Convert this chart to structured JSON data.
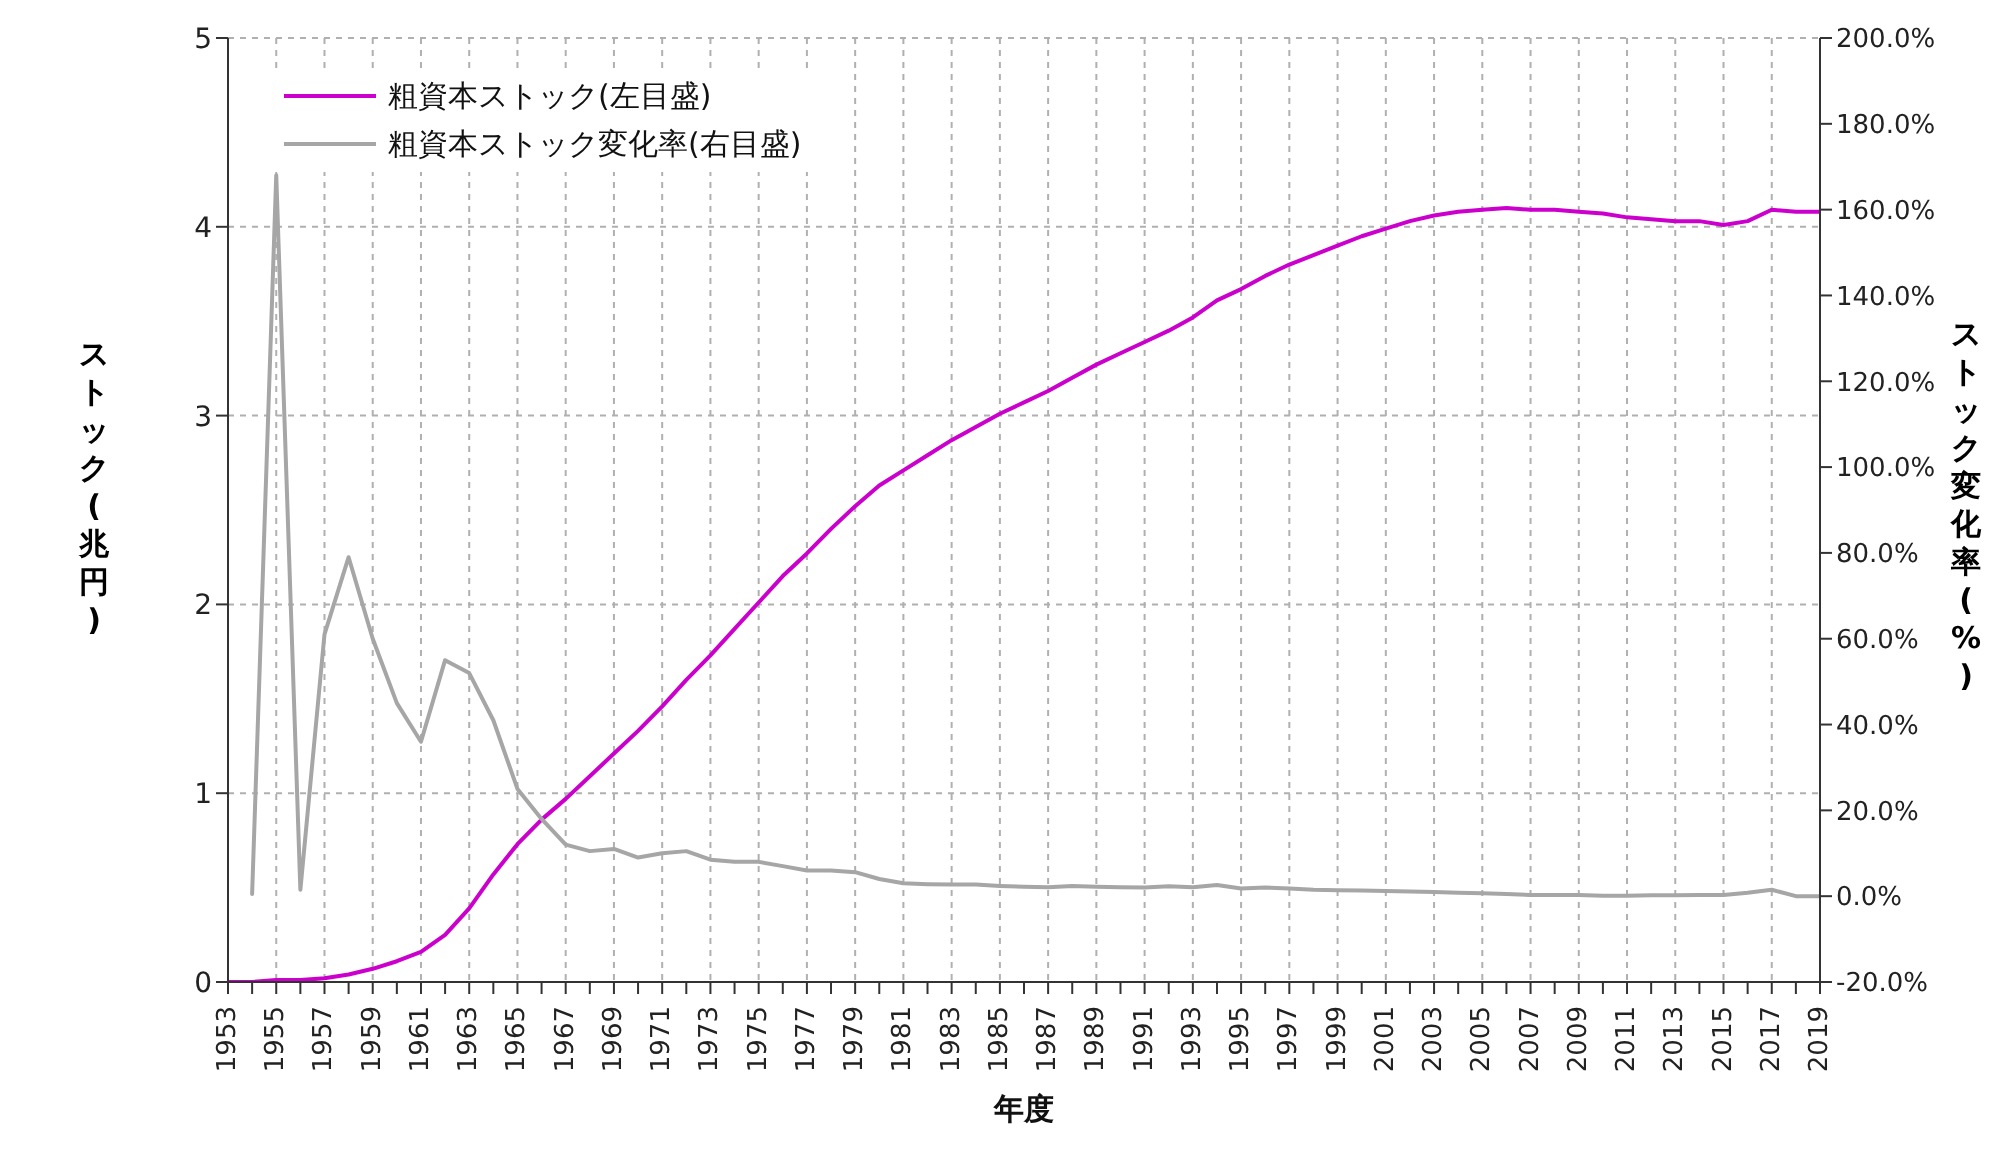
{
  "chart_data": {
    "type": "line",
    "xlabel": "年度",
    "ylabel": "ストック(兆円)",
    "y2label": "ストック変化率(%)",
    "x": [
      1953,
      1954,
      1955,
      1956,
      1957,
      1958,
      1959,
      1960,
      1961,
      1962,
      1963,
      1964,
      1965,
      1966,
      1967,
      1968,
      1969,
      1970,
      1971,
      1972,
      1973,
      1974,
      1975,
      1976,
      1977,
      1978,
      1979,
      1980,
      1981,
      1982,
      1983,
      1984,
      1985,
      1986,
      1987,
      1988,
      1989,
      1990,
      1991,
      1992,
      1993,
      1994,
      1995,
      1996,
      1997,
      1998,
      1999,
      2000,
      2001,
      2002,
      2003,
      2004,
      2005,
      2006,
      2007,
      2008,
      2009,
      2010,
      2011,
      2012,
      2013,
      2014,
      2015,
      2016,
      2017,
      2018,
      2019
    ],
    "series": [
      {
        "name": "粗資本ストック(左目盛)",
        "color": "#cc00cc",
        "values": [
          0,
          0,
          0.01,
          0.01,
          0.02,
          0.04,
          0.07,
          0.11,
          0.16,
          0.25,
          0.39,
          0.57,
          0.73,
          0.86,
          0.97,
          1.09,
          1.21,
          1.33,
          1.46,
          1.6,
          1.73,
          1.87,
          2.01,
          2.15,
          2.27,
          2.4,
          2.52,
          2.63,
          2.71,
          2.79,
          2.87,
          2.94,
          3.01,
          3.07,
          3.13,
          3.2,
          3.27,
          3.33,
          3.39,
          3.45,
          3.52,
          3.61,
          3.67,
          3.74,
          3.8,
          3.85,
          3.9,
          3.95,
          3.99,
          4.03,
          4.06,
          4.08,
          4.09,
          4.1,
          4.09,
          4.09,
          4.08,
          4.07,
          4.05,
          4.04,
          4.03,
          4.03,
          4.01,
          4.03,
          4.09,
          4.08,
          4.08
        ]
      },
      {
        "name": "粗資本ストック変化率(右目盛)",
        "color": "#a6a6a6",
        "axis": "y2",
        "values": [
          null,
          0.5,
          168,
          1.5,
          61,
          79,
          60,
          45,
          36,
          55,
          52,
          41,
          25,
          18,
          12,
          10.5,
          11,
          9,
          10,
          10.5,
          8.5,
          8,
          8,
          7,
          6,
          6,
          5.6,
          4,
          3,
          2.8,
          2.7,
          2.7,
          2.4,
          2.2,
          2.1,
          2.4,
          2.2,
          2.1,
          2,
          2.3,
          2.1,
          2.6,
          1.8,
          2,
          1.8,
          1.5,
          1.4,
          1.3,
          1.2,
          1.1,
          1,
          0.8,
          0.7,
          0.5,
          0.3,
          0.3,
          0.3,
          0.1,
          0.1,
          0.2,
          0.2,
          0.3,
          0.3,
          0.8,
          1.5,
          0,
          0
        ]
      }
    ],
    "xlim": [
      1953,
      2019
    ],
    "xticks": [
      1953,
      {
        "value": 1954,
        "label": null
      },
      1955,
      {
        "value": 1956,
        "label": null
      },
      1957,
      {
        "value": 1958,
        "label": null
      },
      1959,
      {
        "value": 1960,
        "label": null
      },
      1961,
      {
        "value": 1962,
        "label": null
      },
      1963,
      {
        "value": 1964,
        "label": null
      },
      1965,
      {
        "value": 1966,
        "label": null
      },
      1967,
      {
        "value": 1968,
        "label": null
      },
      1969,
      {
        "value": 1970,
        "label": null
      },
      1971,
      {
        "value": 1972,
        "label": null
      },
      1973,
      {
        "value": 1974,
        "label": null
      },
      1975,
      {
        "value": 1976,
        "label": null
      },
      1977,
      {
        "value": 1978,
        "label": null
      },
      1979,
      {
        "value": 1980,
        "label": null
      },
      1981,
      {
        "value": 1982,
        "label": null
      },
      1983,
      {
        "value": 1984,
        "label": null
      },
      1985,
      {
        "value": 1986,
        "label": null
      },
      1987,
      {
        "value": 1988,
        "label": null
      },
      1989,
      {
        "value": 1990,
        "label": null
      },
      1991,
      {
        "value": 1992,
        "label": null
      },
      1993,
      {
        "value": 1994,
        "label": null
      },
      1995,
      {
        "value": 1996,
        "label": null
      },
      1997,
      {
        "value": 1998,
        "label": null
      },
      1999,
      {
        "value": 2000,
        "label": null
      },
      2001,
      {
        "value": 2002,
        "label": null
      },
      2003,
      {
        "value": 2004,
        "label": null
      },
      2005,
      {
        "value": 2006,
        "label": null
      },
      2007,
      {
        "value": 2008,
        "label": null
      },
      2009,
      {
        "value": 2010,
        "label": null
      },
      2011,
      {
        "value": 2012,
        "label": null
      },
      2013,
      {
        "value": 2014,
        "label": null
      },
      2015,
      {
        "value": 2016,
        "label": null
      },
      2017,
      {
        "value": 2018,
        "label": null
      },
      2019
    ],
    "ylim": [
      0,
      5
    ],
    "yticks": [
      0,
      1,
      2,
      3,
      4,
      5
    ],
    "y2lim": [
      -20,
      200
    ],
    "y2ticks": [
      {
        "value": -20,
        "label": "-20.0%"
      },
      {
        "value": 0,
        "label": "0.0%"
      },
      {
        "value": 20,
        "label": "20.0%"
      },
      {
        "value": 40,
        "label": "40.0%"
      },
      {
        "value": 60,
        "label": "60.0%"
      },
      {
        "value": 80,
        "label": "80.0%"
      },
      {
        "value": 100,
        "label": "100.0%"
      },
      {
        "value": 120,
        "label": "120.0%"
      },
      {
        "value": 140,
        "label": "140.0%"
      },
      {
        "value": 160,
        "label": "160.0%"
      },
      {
        "value": 180,
        "label": "180.0%"
      },
      {
        "value": 200,
        "label": "200.0%"
      }
    ],
    "grid": true,
    "legend": "top left",
    "marker": "none",
    "line_style": "solid"
  }
}
